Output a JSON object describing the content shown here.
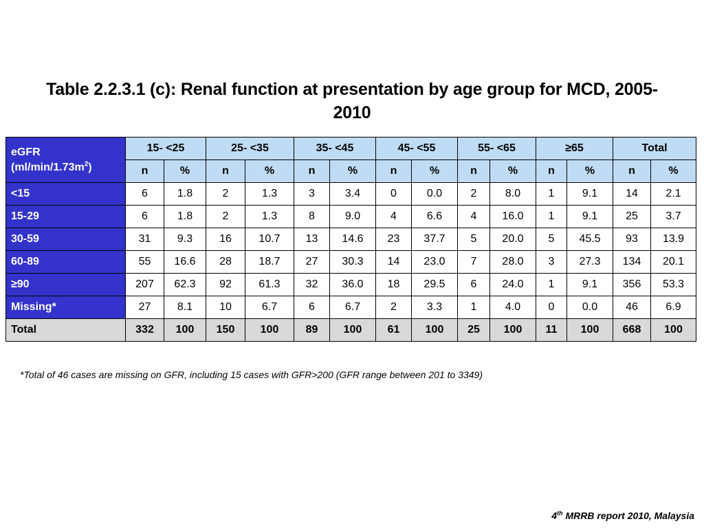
{
  "title": "Table 2.2.3.1 (c): Renal function at presentation by age group for MCD, 2005-2010",
  "table": {
    "corner_label_line1": "eGFR",
    "corner_label_line2_prefix": "(ml/min/1.73m",
    "corner_label_sup": "2",
    "corner_label_suffix": ")",
    "groups": [
      "15- <25",
      "25- <35",
      "35- <45",
      "45- <55",
      "55- <65",
      "≥65",
      "Total"
    ],
    "sub_n": "n",
    "sub_pct": "%",
    "rows": [
      {
        "label": "<15",
        "cells": [
          "6",
          "1.8",
          "2",
          "1.3",
          "3",
          "3.4",
          "0",
          "0.0",
          "2",
          "8.0",
          "1",
          "9.1",
          "14",
          "2.1"
        ]
      },
      {
        "label": "15-29",
        "cells": [
          "6",
          "1.8",
          "2",
          "1.3",
          "8",
          "9.0",
          "4",
          "6.6",
          "4",
          "16.0",
          "1",
          "9.1",
          "25",
          "3.7"
        ]
      },
      {
        "label": "30-59",
        "cells": [
          "31",
          "9.3",
          "16",
          "10.7",
          "13",
          "14.6",
          "23",
          "37.7",
          "5",
          "20.0",
          "5",
          "45.5",
          "93",
          "13.9"
        ]
      },
      {
        "label": "60-89",
        "cells": [
          "55",
          "16.6",
          "28",
          "18.7",
          "27",
          "30.3",
          "14",
          "23.0",
          "7",
          "28.0",
          "3",
          "27.3",
          "134",
          "20.1"
        ]
      },
      {
        "label": "≥90",
        "cells": [
          "207",
          "62.3",
          "92",
          "61.3",
          "32",
          "36.0",
          "18",
          "29.5",
          "6",
          "24.0",
          "1",
          "9.1",
          "356",
          "53.3"
        ]
      },
      {
        "label": "Missing*",
        "cells": [
          "27",
          "8.1",
          "10",
          "6.7",
          "6",
          "6.7",
          "2",
          "3.3",
          "1",
          "4.0",
          "0",
          "0.0",
          "46",
          "6.9"
        ]
      },
      {
        "label": "Total",
        "total": true,
        "cells": [
          "332",
          "100",
          "150",
          "100",
          "89",
          "100",
          "61",
          "100",
          "25",
          "100",
          "11",
          "100",
          "668",
          "100"
        ]
      }
    ]
  },
  "footnote": "*Total of 46 cases are missing on GFR, including 15 cases with GFR>200 (GFR range between 201 to 3349)",
  "source": {
    "prefix": "4",
    "sup": "th",
    "text": " MRRB report 2010, Malaysia"
  }
}
